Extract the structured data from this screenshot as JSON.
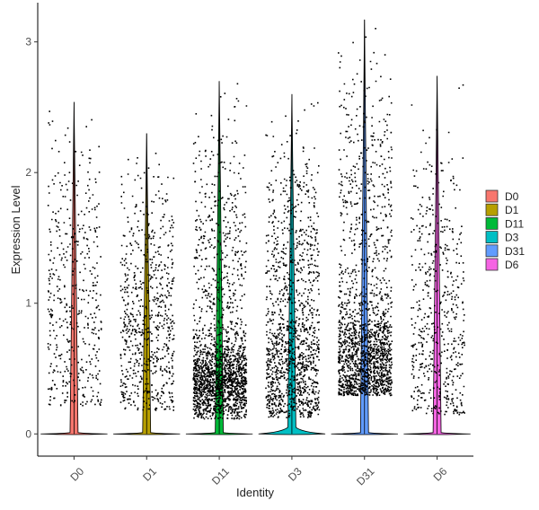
{
  "chart_data": {
    "type": "violin-jitter",
    "title": "",
    "xlabel": "Identity",
    "ylabel": "Expression Level",
    "ylim": [
      -0.17,
      3.3
    ],
    "yticks": [
      0,
      1,
      2,
      3
    ],
    "ytick_labels": [
      "0",
      "1",
      "2",
      "3"
    ],
    "categories": [
      "D0",
      "D1",
      "D11",
      "D3",
      "D31",
      "D6"
    ],
    "grid": false,
    "legend_position": "right",
    "legend": [
      {
        "name": "D0",
        "color": "#F8766D"
      },
      {
        "name": "D1",
        "color": "#B79F00"
      },
      {
        "name": "D11",
        "color": "#00BA38"
      },
      {
        "name": "D3",
        "color": "#00BFC4"
      },
      {
        "name": "D31",
        "color": "#619CFF"
      },
      {
        "name": "D6",
        "color": "#F564E3"
      }
    ],
    "series": [
      {
        "name": "D0",
        "max": 2.54,
        "min_nonzero": 0.22,
        "n_points": 450,
        "dense_center": 0.9,
        "dense_sd": 0.55,
        "dense_frac": 0.3,
        "zero_peak": 0.01
      },
      {
        "name": "D1",
        "max": 2.3,
        "min_nonzero": 0.18,
        "n_points": 700,
        "dense_center": 0.7,
        "dense_sd": 0.4,
        "dense_frac": 0.35,
        "zero_peak": 0.01
      },
      {
        "name": "D11",
        "max": 2.7,
        "min_nonzero": 0.12,
        "n_points": 1900,
        "dense_center": 0.4,
        "dense_sd": 0.15,
        "dense_frac": 0.65,
        "zero_peak": 0.01
      },
      {
        "name": "D3",
        "max": 2.6,
        "min_nonzero": 0.13,
        "n_points": 1300,
        "dense_center": 0.5,
        "dense_sd": 0.25,
        "dense_frac": 0.4,
        "zero_peak": 0.05
      },
      {
        "name": "D31",
        "max": 3.17,
        "min_nonzero": 0.3,
        "n_points": 1700,
        "dense_center": 0.55,
        "dense_sd": 0.22,
        "dense_frac": 0.6,
        "zero_peak": 0.01
      },
      {
        "name": "D6",
        "max": 2.74,
        "min_nonzero": 0.15,
        "n_points": 550,
        "dense_center": 0.6,
        "dense_sd": 0.35,
        "dense_frac": 0.35,
        "zero_peak": 0.01
      }
    ]
  }
}
